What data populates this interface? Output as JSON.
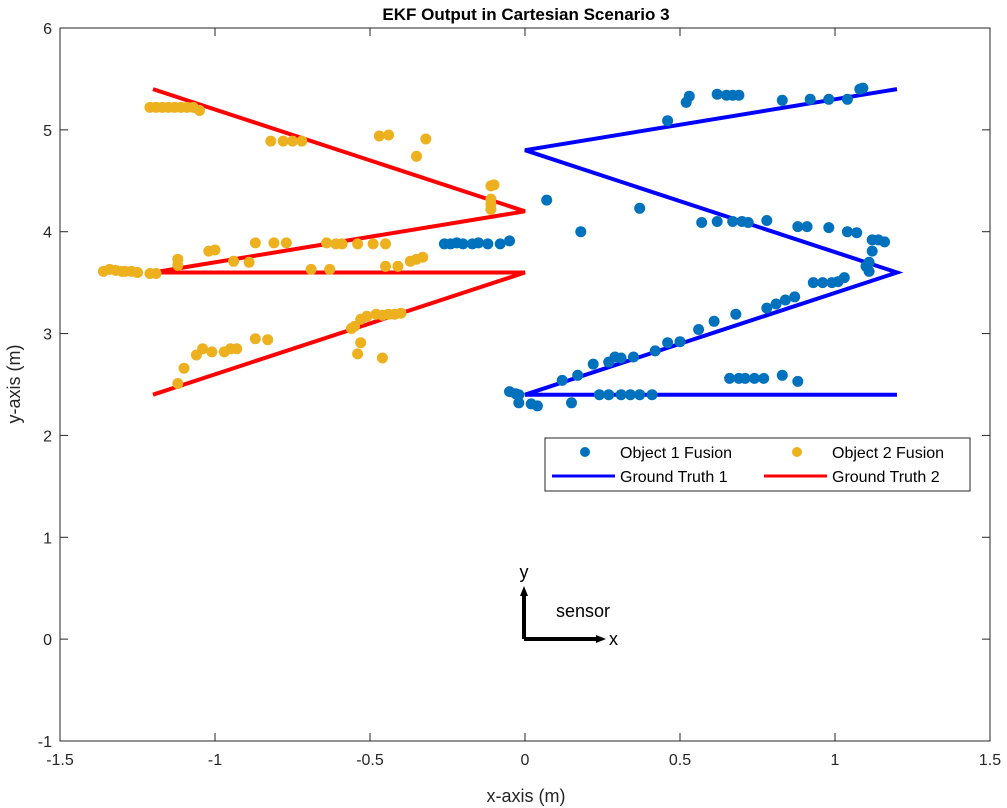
{
  "chart_data": {
    "type": "scatter",
    "title": "EKF Output in Cartesian Scenario 3",
    "xlabel": "x-axis (m)",
    "ylabel": "y-axis (m)",
    "xlim": [
      -1.5,
      1.5
    ],
    "ylim": [
      -1,
      6
    ],
    "xticks": [
      "-1.5",
      "-1",
      "-0.5",
      "0",
      "0.5",
      "1",
      "1.5"
    ],
    "yticks": [
      "-1",
      "0",
      "1",
      "2",
      "3",
      "4",
      "5",
      "6"
    ],
    "grid": false,
    "legend": {
      "position": "inside-right",
      "entries": [
        "Object 1 Fusion",
        "Object 2 Fusion",
        "Ground Truth 1",
        "Ground Truth 2"
      ]
    },
    "colors": {
      "object1": "#0072BD",
      "object2": "#EDB120",
      "truth1": "#0000FF",
      "truth2": "#FF0000",
      "axes": "#262626"
    },
    "series": [
      {
        "name": "Object 1 Fusion",
        "kind": "scatter",
        "color": "#0072BD",
        "points": [
          [
            1.09,
            5.41
          ],
          [
            1.08,
            5.4
          ],
          [
            1.04,
            5.3
          ],
          [
            0.98,
            5.3
          ],
          [
            0.92,
            5.3
          ],
          [
            0.83,
            5.29
          ],
          [
            0.69,
            5.34
          ],
          [
            0.67,
            5.34
          ],
          [
            0.65,
            5.34
          ],
          [
            0.62,
            5.35
          ],
          [
            0.53,
            5.33
          ],
          [
            0.52,
            5.27
          ],
          [
            0.46,
            5.09
          ],
          [
            0.07,
            4.31
          ],
          [
            0.37,
            4.23
          ],
          [
            0.18,
            4.0
          ],
          [
            -0.05,
            3.91
          ],
          [
            -0.08,
            3.88
          ],
          [
            -0.12,
            3.88
          ],
          [
            -0.15,
            3.89
          ],
          [
            -0.17,
            3.88
          ],
          [
            -0.2,
            3.88
          ],
          [
            -0.22,
            3.89
          ],
          [
            -0.24,
            3.88
          ],
          [
            -0.26,
            3.88
          ],
          [
            0.57,
            4.09
          ],
          [
            0.62,
            4.1
          ],
          [
            0.67,
            4.1
          ],
          [
            0.7,
            4.1
          ],
          [
            0.72,
            4.09
          ],
          [
            0.78,
            4.11
          ],
          [
            0.88,
            4.05
          ],
          [
            0.91,
            4.05
          ],
          [
            0.98,
            4.04
          ],
          [
            1.04,
            4.0
          ],
          [
            1.07,
            3.99
          ],
          [
            1.12,
            3.92
          ],
          [
            1.14,
            3.92
          ],
          [
            1.16,
            3.9
          ],
          [
            1.12,
            3.81
          ],
          [
            1.11,
            3.7
          ],
          [
            1.1,
            3.66
          ],
          [
            1.11,
            3.61
          ],
          [
            1.03,
            3.55
          ],
          [
            1.01,
            3.51
          ],
          [
            0.99,
            3.5
          ],
          [
            0.96,
            3.5
          ],
          [
            0.93,
            3.5
          ],
          [
            0.87,
            3.36
          ],
          [
            0.84,
            3.33
          ],
          [
            0.81,
            3.29
          ],
          [
            0.78,
            3.25
          ],
          [
            0.68,
            3.19
          ],
          [
            0.61,
            3.12
          ],
          [
            0.56,
            3.04
          ],
          [
            0.5,
            2.92
          ],
          [
            0.46,
            2.91
          ],
          [
            0.42,
            2.83
          ],
          [
            0.35,
            2.77
          ],
          [
            0.31,
            2.76
          ],
          [
            0.29,
            2.77
          ],
          [
            0.27,
            2.72
          ],
          [
            0.22,
            2.7
          ],
          [
            0.17,
            2.59
          ],
          [
            0.12,
            2.54
          ],
          [
            0.88,
            2.53
          ],
          [
            0.83,
            2.59
          ],
          [
            0.77,
            2.56
          ],
          [
            0.74,
            2.56
          ],
          [
            0.71,
            2.56
          ],
          [
            0.69,
            2.56
          ],
          [
            0.66,
            2.56
          ],
          [
            0.41,
            2.4
          ],
          [
            0.37,
            2.4
          ],
          [
            0.34,
            2.4
          ],
          [
            0.31,
            2.4
          ],
          [
            0.27,
            2.4
          ],
          [
            0.24,
            2.4
          ],
          [
            0.15,
            2.32
          ],
          [
            -0.05,
            2.43
          ],
          [
            -0.03,
            2.41
          ],
          [
            -0.02,
            2.4
          ],
          [
            -0.02,
            2.32
          ],
          [
            0.02,
            2.31
          ],
          [
            0.04,
            2.29
          ]
        ]
      },
      {
        "name": "Object 2 Fusion",
        "kind": "scatter",
        "color": "#EDB120",
        "points": [
          [
            -1.21,
            5.22
          ],
          [
            -1.19,
            5.22
          ],
          [
            -1.17,
            5.22
          ],
          [
            -1.15,
            5.22
          ],
          [
            -1.13,
            5.22
          ],
          [
            -1.11,
            5.22
          ],
          [
            -1.09,
            5.22
          ],
          [
            -1.07,
            5.22
          ],
          [
            -1.05,
            5.19
          ],
          [
            -0.44,
            4.95
          ],
          [
            -0.47,
            4.94
          ],
          [
            -0.32,
            4.91
          ],
          [
            -0.72,
            4.89
          ],
          [
            -0.78,
            4.89
          ],
          [
            -0.82,
            4.89
          ],
          [
            -0.75,
            4.89
          ],
          [
            -0.35,
            4.74
          ],
          [
            -0.1,
            4.46
          ],
          [
            -0.11,
            4.45
          ],
          [
            -0.11,
            4.32
          ],
          [
            -0.11,
            4.27
          ],
          [
            -0.11,
            4.22
          ],
          [
            -0.59,
            3.88
          ],
          [
            -0.61,
            3.88
          ],
          [
            -0.64,
            3.89
          ],
          [
            -0.54,
            3.88
          ],
          [
            -0.49,
            3.88
          ],
          [
            -0.45,
            3.88
          ],
          [
            -0.77,
            3.89
          ],
          [
            -0.81,
            3.89
          ],
          [
            -0.87,
            3.89
          ],
          [
            -1.0,
            3.82
          ],
          [
            -1.02,
            3.81
          ],
          [
            -1.12,
            3.73
          ],
          [
            -1.12,
            3.67
          ],
          [
            -0.94,
            3.71
          ],
          [
            -0.89,
            3.7
          ],
          [
            -0.33,
            3.75
          ],
          [
            -0.35,
            3.73
          ],
          [
            -0.37,
            3.71
          ],
          [
            -0.41,
            3.66
          ],
          [
            -0.45,
            3.66
          ],
          [
            -0.63,
            3.63
          ],
          [
            -0.69,
            3.63
          ],
          [
            -1.36,
            3.61
          ],
          [
            -1.34,
            3.63
          ],
          [
            -1.32,
            3.62
          ],
          [
            -1.3,
            3.61
          ],
          [
            -1.29,
            3.61
          ],
          [
            -1.27,
            3.61
          ],
          [
            -1.25,
            3.6
          ],
          [
            -1.21,
            3.59
          ],
          [
            -1.19,
            3.59
          ],
          [
            -0.4,
            3.2
          ],
          [
            -0.42,
            3.19
          ],
          [
            -0.44,
            3.19
          ],
          [
            -0.46,
            3.18
          ],
          [
            -0.48,
            3.19
          ],
          [
            -0.51,
            3.17
          ],
          [
            -0.53,
            3.14
          ],
          [
            -0.55,
            3.07
          ],
          [
            -0.56,
            3.05
          ],
          [
            -0.83,
            2.94
          ],
          [
            -0.87,
            2.95
          ],
          [
            -0.93,
            2.85
          ],
          [
            -0.95,
            2.85
          ],
          [
            -0.97,
            2.82
          ],
          [
            -1.01,
            2.82
          ],
          [
            -1.04,
            2.85
          ],
          [
            -1.06,
            2.79
          ],
          [
            -0.53,
            2.91
          ],
          [
            -0.54,
            2.8
          ],
          [
            -0.46,
            2.76
          ],
          [
            -1.1,
            2.66
          ],
          [
            -1.12,
            2.51
          ]
        ]
      },
      {
        "name": "Ground Truth 1",
        "kind": "line",
        "color": "#0000FF",
        "points": [
          [
            1.2,
            5.4
          ],
          [
            0,
            4.8
          ],
          [
            1.2,
            3.6
          ],
          [
            0,
            2.4
          ],
          [
            1.2,
            2.4
          ]
        ]
      },
      {
        "name": "Ground Truth 2",
        "kind": "line",
        "color": "#FF0000",
        "points": [
          [
            -1.2,
            5.4
          ],
          [
            0,
            4.2
          ],
          [
            -1.2,
            3.6
          ],
          [
            0,
            3.6
          ],
          [
            -1.2,
            2.4
          ]
        ]
      }
    ],
    "annotations": [
      {
        "text": "y",
        "kind": "sensor-axis-label"
      },
      {
        "text": "x",
        "kind": "sensor-axis-label"
      },
      {
        "text": "sensor",
        "kind": "sensor-label"
      }
    ]
  }
}
